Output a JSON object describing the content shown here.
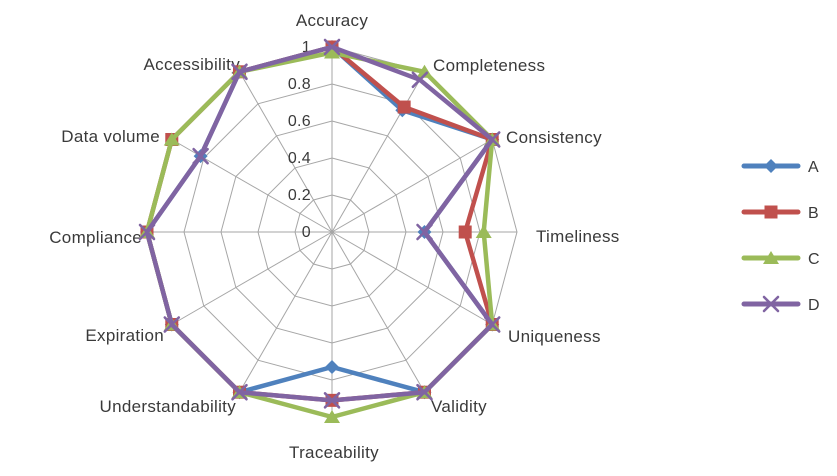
{
  "chart_data": {
    "type": "radar",
    "title": "",
    "categories": [
      "Accuracy",
      "Completeness",
      "Consistency",
      "Timeliness",
      "Uniqueness",
      "Validity",
      "Traceability",
      "Understandability",
      "Expiration",
      "Compliance",
      "Data volume",
      "Accessibility"
    ],
    "series": [
      {
        "name": "A",
        "color": "#4F81BD",
        "marker": "diamond",
        "values": [
          1,
          0.76,
          1,
          0.5,
          1,
          1,
          0.73,
          1,
          1,
          1,
          0.82,
          1
        ]
      },
      {
        "name": "B",
        "color": "#C0504D",
        "marker": "square",
        "values": [
          1,
          0.78,
          1,
          0.72,
          1,
          1,
          0.91,
          1,
          1,
          1,
          1.0,
          1
        ]
      },
      {
        "name": "C",
        "color": "#9BBB59",
        "marker": "triangle",
        "values": [
          0.97,
          1,
          1,
          0.82,
          1,
          1,
          1.0,
          1,
          1,
          1,
          1.0,
          1
        ]
      },
      {
        "name": "D",
        "color": "#8064A2",
        "marker": "x",
        "values": [
          1,
          0.95,
          1,
          0.5,
          1,
          1,
          0.91,
          1,
          1,
          1,
          0.82,
          1
        ]
      }
    ],
    "radial_axis": {
      "min": 0,
      "max": 1,
      "tick_labels": [
        "0",
        "0.2",
        "0.4",
        "0.6",
        "0.8",
        "1"
      ]
    },
    "grid": true,
    "grid_color": "#A6A6A6",
    "text_color": "#3A3A3A",
    "legend_position": "right"
  }
}
